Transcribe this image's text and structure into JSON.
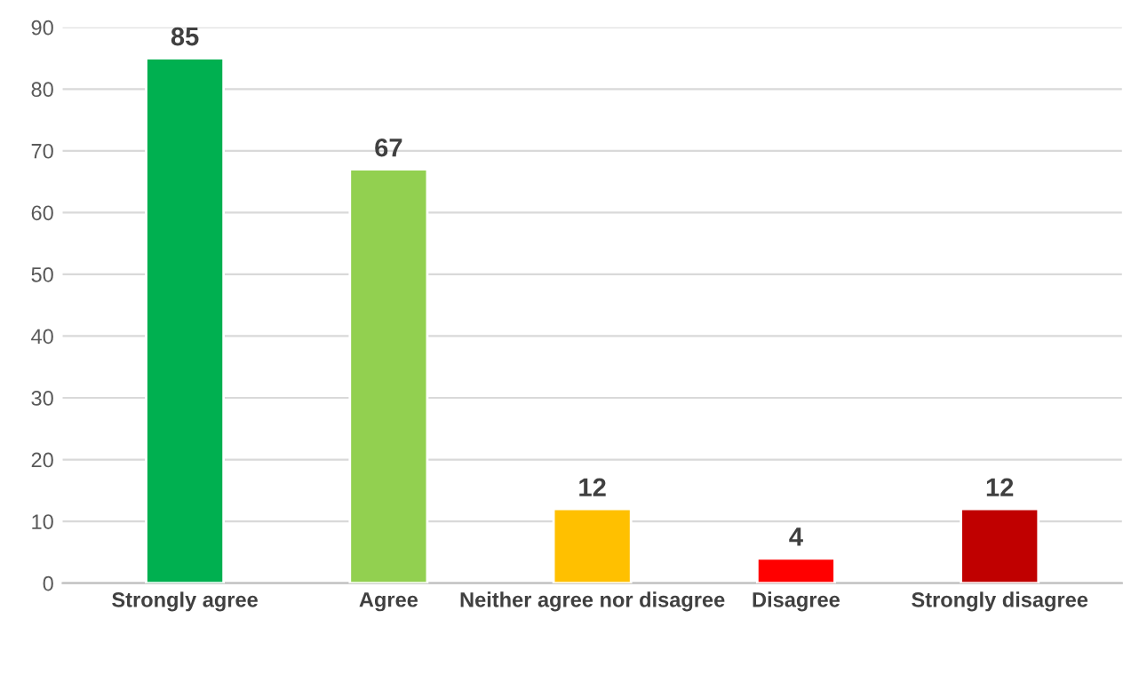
{
  "chart_data": {
    "type": "bar",
    "categories": [
      "Strongly agree",
      "Agree",
      "Neither agree nor disagree",
      "Disagree",
      "Strongly disagree"
    ],
    "values": [
      85,
      67,
      12,
      4,
      12
    ],
    "colors": [
      "#00b050",
      "#92d050",
      "#ffc000",
      "#ff0000",
      "#c00000"
    ],
    "ylim": [
      0,
      90
    ],
    "yticks": [
      0,
      10,
      20,
      30,
      40,
      50,
      60,
      70,
      80,
      90
    ],
    "grid": "y",
    "data_labels": true,
    "legend": false
  }
}
